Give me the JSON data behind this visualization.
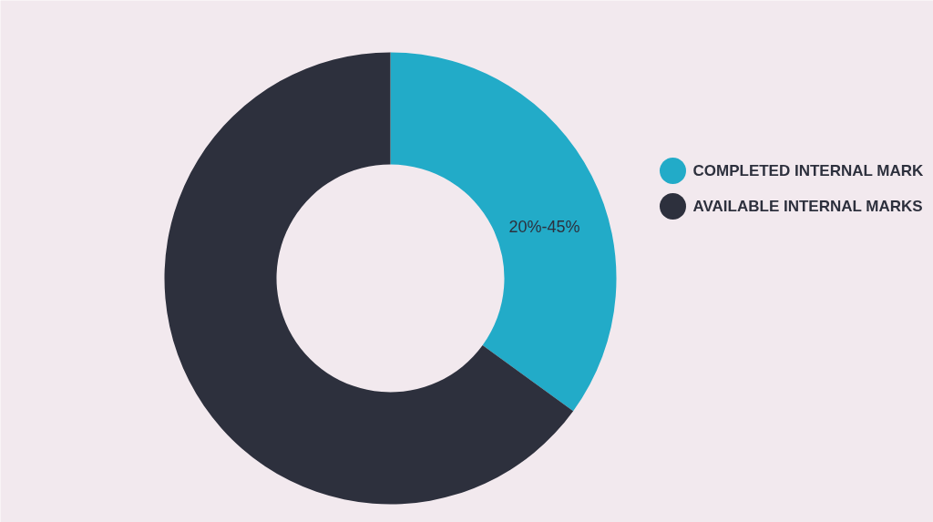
{
  "chart_data": {
    "type": "donut",
    "categories": [
      "COMPLETED INTERNAL MARK",
      "AVAILABLE INTERNAL MARKS"
    ],
    "values": [
      35,
      65
    ],
    "colors": [
      "#22abc8",
      "#2d303d"
    ],
    "annotations": [
      "20%-45%"
    ],
    "legend": "right"
  }
}
